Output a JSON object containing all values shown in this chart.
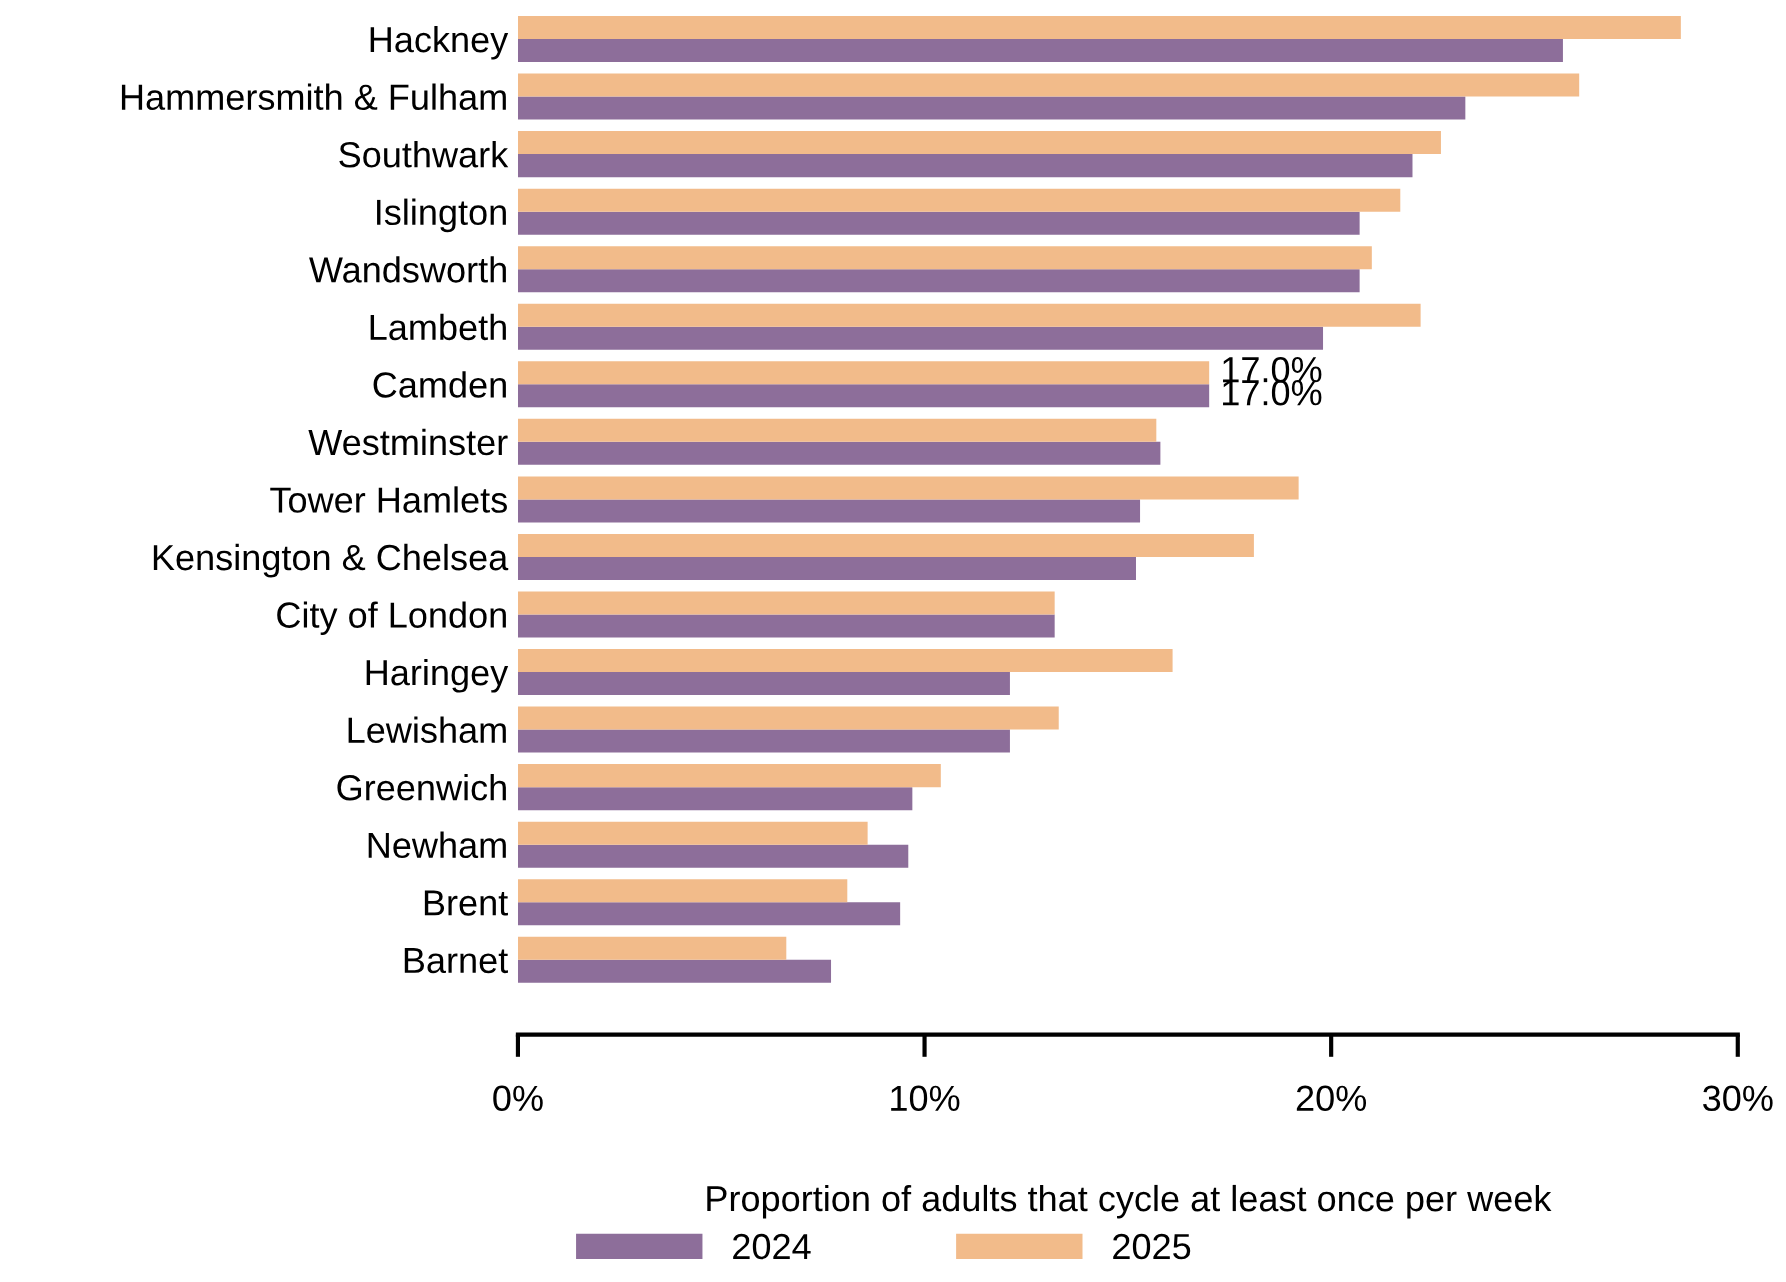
{
  "chart_data": {
    "type": "bar",
    "orientation": "horizontal",
    "xlabel": "Proportion of adults that cycle at least once per week",
    "categories": [
      "Hackney",
      "Hammersmith & Fulham",
      "Southwark",
      "Islington",
      "Wandsworth",
      "Lambeth",
      "Camden",
      "Westminster",
      "Tower Hamlets",
      "Kensington & Chelsea",
      "City of London",
      "Haringey",
      "Lewisham",
      "Greenwich",
      "Newham",
      "Brent",
      "Barnet"
    ],
    "series": [
      {
        "name": "2024",
        "color": "#8d6e9a",
        "values": [
          25.7,
          23.3,
          22.0,
          20.7,
          20.7,
          19.8,
          17.0,
          15.8,
          15.3,
          15.2,
          13.2,
          12.1,
          12.1,
          9.7,
          9.6,
          9.4,
          7.7
        ],
        "value_labels": [
          null,
          null,
          null,
          null,
          null,
          null,
          "17.0%",
          null,
          null,
          null,
          null,
          null,
          null,
          null,
          null,
          null,
          null
        ]
      },
      {
        "name": "2025",
        "color": "#f2bb8a",
        "values": [
          28.6,
          26.1,
          22.7,
          21.7,
          21.0,
          22.2,
          17.0,
          15.7,
          19.2,
          18.1,
          13.2,
          16.1,
          13.3,
          10.4,
          8.6,
          8.1,
          6.6
        ],
        "value_labels": [
          null,
          null,
          null,
          null,
          null,
          null,
          "17.0%",
          null,
          null,
          null,
          null,
          null,
          null,
          null,
          null,
          null,
          null
        ]
      }
    ],
    "xlim": [
      0,
      30
    ],
    "xticks": [
      {
        "value": 0,
        "label": "0%"
      },
      {
        "value": 10,
        "label": "10%"
      },
      {
        "value": 20,
        "label": "20%"
      },
      {
        "value": 30,
        "label": "30%"
      }
    ],
    "legend": "bottom",
    "grid": false
  }
}
